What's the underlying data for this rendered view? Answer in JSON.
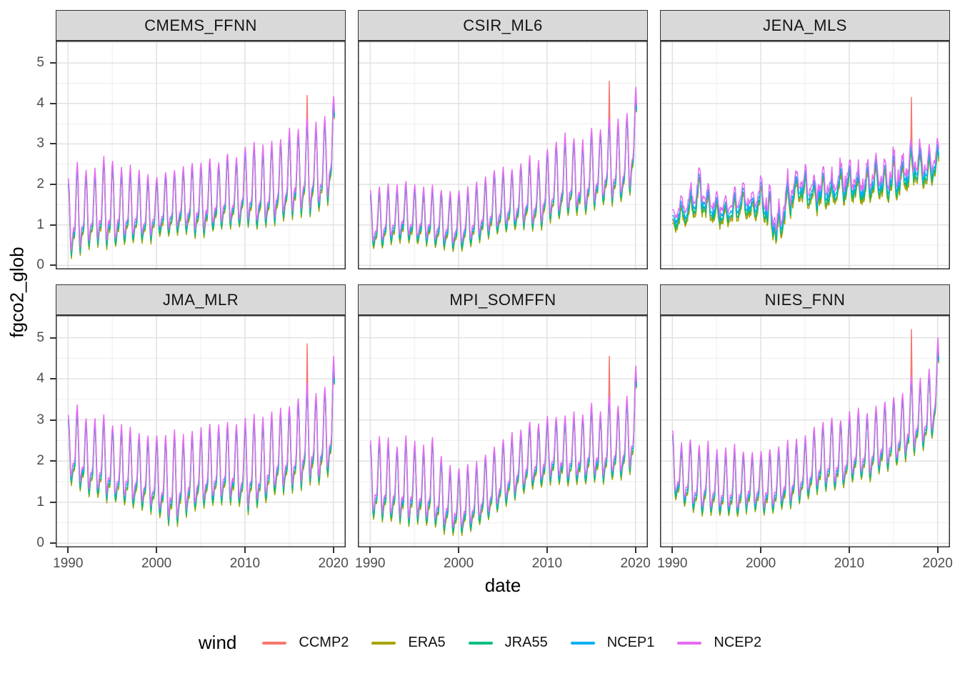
{
  "figure": {
    "y_axis_title": "fgco2_glob",
    "x_axis_title": "date",
    "legend_title": "wind"
  },
  "chart_data": {
    "type": "line",
    "title": "",
    "xlabel": "date",
    "ylabel": "fgco2_glob",
    "legend_title": "wind",
    "legend_position": "bottom",
    "grid": "on",
    "facet_layout": "2 rows x 3 cols",
    "x_domain": [
      1988.6,
      2021.4
    ],
    "y_domain": [
      -0.1,
      5.55
    ],
    "x_ticks": [
      1990,
      2000,
      2010,
      2020
    ],
    "x_minor_ticks": [
      1995,
      2005,
      2015
    ],
    "y_ticks": [
      0,
      1,
      2,
      3,
      4,
      5
    ],
    "y_minor_ticks": [
      0.5,
      1.5,
      2.5,
      3.5,
      4.5,
      5.5
    ],
    "sampling": "monthly values, Jan 1990 - Feb 2020; seasonal cycle peaks near January, trough in boreal summer",
    "envelope_note": "peaks/troughs are per-year seasonal maxima/minima (units of fgco2_glob) read from the plot",
    "years_start": 1990,
    "style": {
      "strip_fill": "#D9D9D9",
      "panel_border": "#333333",
      "grid_major": "#E2E2E2",
      "grid_minor": "#EFEFEF",
      "tick_label_color": "#4d4d4d"
    },
    "series": [
      {
        "name": "CCMP2",
        "color": "#F8766D",
        "amp": 1.05,
        "offset": -0.05
      },
      {
        "name": "ERA5",
        "color": "#A3A500",
        "amp": 1.07,
        "offset": -0.08
      },
      {
        "name": "JRA55",
        "color": "#00BF7D",
        "amp": 1.05,
        "offset": -0.03
      },
      {
        "name": "NCEP1",
        "color": "#00B0F6",
        "amp": 1.0,
        "offset": 0.02
      },
      {
        "name": "NCEP2",
        "color": "#E76BF3",
        "amp": 1.03,
        "offset": 0.1
      }
    ],
    "facets": [
      {
        "title": "CMEMS_FFNN",
        "season_weight": 0.93,
        "offset_spread": 1.0,
        "peaks": [
          2.1,
          2.55,
          2.35,
          2.3,
          2.65,
          2.55,
          2.35,
          2.4,
          2.3,
          2.2,
          2.1,
          2.25,
          2.3,
          2.35,
          2.5,
          2.5,
          2.6,
          2.5,
          2.75,
          2.6,
          2.9,
          3.0,
          2.9,
          3.0,
          3.1,
          3.3,
          3.35,
          3.65,
          3.5,
          3.6,
          4.15
        ],
        "troughs": [
          0.25,
          0.3,
          0.45,
          0.5,
          0.55,
          0.45,
          0.6,
          0.55,
          0.65,
          0.55,
          0.8,
          0.75,
          0.8,
          0.85,
          0.8,
          0.75,
          0.85,
          0.9,
          1.0,
          0.95,
          1.1,
          0.95,
          0.95,
          1.1,
          1.1,
          1.2,
          1.3,
          1.3,
          1.35,
          1.5,
          1.8
        ],
        "ccmp2_spike": {
          "t": 2017.0,
          "value": 4.2
        }
      },
      {
        "title": "CSIR_ML6",
        "season_weight": 0.93,
        "offset_spread": 1.0,
        "peaks": [
          1.75,
          1.85,
          1.95,
          1.9,
          2.0,
          1.95,
          1.85,
          1.9,
          1.8,
          1.75,
          1.8,
          1.85,
          2.0,
          2.1,
          2.3,
          2.35,
          2.3,
          2.45,
          2.6,
          2.5,
          2.8,
          3.0,
          3.2,
          3.1,
          3.0,
          3.35,
          3.3,
          3.6,
          3.5,
          3.7,
          4.35
        ],
        "troughs": [
          0.5,
          0.45,
          0.55,
          0.6,
          0.65,
          0.55,
          0.6,
          0.55,
          0.5,
          0.45,
          0.4,
          0.45,
          0.6,
          0.7,
          0.8,
          0.85,
          0.9,
          0.95,
          1.0,
          0.9,
          1.1,
          1.15,
          1.2,
          1.3,
          1.25,
          1.45,
          1.5,
          1.6,
          1.55,
          1.7,
          2.1
        ],
        "ccmp2_spike": {
          "t": 2017.0,
          "value": 4.55
        }
      },
      {
        "title": "JENA_MLS",
        "season_weight": 0.62,
        "offset_spread": 1.8,
        "peaks": [
          1.3,
          1.75,
          1.9,
          2.75,
          2.0,
          1.75,
          1.6,
          1.8,
          2.1,
          1.85,
          2.15,
          2.0,
          1.5,
          2.35,
          2.4,
          2.45,
          2.2,
          2.5,
          2.3,
          2.6,
          2.7,
          2.5,
          2.6,
          2.75,
          2.6,
          2.9,
          2.8,
          3.15,
          3.1,
          2.95,
          3.05
        ],
        "troughs": [
          0.85,
          0.95,
          1.1,
          1.2,
          1.0,
          1.05,
          0.95,
          1.1,
          1.3,
          0.9,
          1.35,
          0.75,
          0.35,
          1.15,
          1.4,
          1.5,
          1.3,
          1.45,
          1.35,
          1.5,
          1.6,
          1.4,
          1.55,
          1.7,
          1.5,
          1.7,
          1.6,
          1.9,
          2.0,
          1.85,
          2.3
        ],
        "ccmp2_spike": {
          "t": 2017.0,
          "value": 4.15
        }
      },
      {
        "title": "JMA_MLR",
        "season_weight": 0.93,
        "offset_spread": 1.0,
        "peaks": [
          3.05,
          3.3,
          3.0,
          2.95,
          3.1,
          2.85,
          2.8,
          2.75,
          2.65,
          2.6,
          2.55,
          2.6,
          2.65,
          2.55,
          2.7,
          2.75,
          2.85,
          2.8,
          2.9,
          2.85,
          3.0,
          3.1,
          3.05,
          3.15,
          3.2,
          3.3,
          3.5,
          3.85,
          3.6,
          3.75,
          4.45
        ],
        "troughs": [
          1.55,
          1.4,
          1.25,
          1.2,
          1.1,
          1.05,
          1.0,
          0.95,
          0.9,
          0.85,
          0.75,
          0.6,
          0.45,
          0.7,
          0.8,
          0.9,
          0.95,
          1.0,
          1.05,
          1.0,
          0.8,
          0.85,
          0.9,
          1.2,
          1.25,
          1.3,
          1.35,
          1.45,
          1.5,
          1.55,
          1.8
        ],
        "ccmp2_spike": {
          "t": 2017.0,
          "value": 4.85
        }
      },
      {
        "title": "MPI_SOMFFN",
        "season_weight": 0.93,
        "offset_spread": 1.0,
        "peaks": [
          2.45,
          2.55,
          2.5,
          2.3,
          2.55,
          2.45,
          2.3,
          2.55,
          2.1,
          1.8,
          1.75,
          1.85,
          1.9,
          2.1,
          2.3,
          2.5,
          2.6,
          2.7,
          2.9,
          2.8,
          3.0,
          3.05,
          3.0,
          3.1,
          3.05,
          3.35,
          3.1,
          3.5,
          3.3,
          3.45,
          4.3
        ],
        "troughs": [
          0.6,
          0.65,
          0.55,
          0.6,
          0.5,
          0.55,
          0.5,
          0.45,
          0.35,
          0.3,
          0.25,
          0.3,
          0.45,
          0.55,
          0.75,
          0.9,
          1.1,
          1.2,
          1.4,
          1.35,
          1.5,
          1.55,
          1.45,
          1.5,
          1.45,
          1.6,
          1.5,
          1.6,
          1.55,
          1.6,
          1.9
        ],
        "ccmp2_spike": {
          "t": 2017.0,
          "value": 4.55
        }
      },
      {
        "title": "NIES_FNN",
        "season_weight": 0.93,
        "offset_spread": 1.0,
        "peaks": [
          2.7,
          2.35,
          2.5,
          2.3,
          2.4,
          2.2,
          2.25,
          2.3,
          2.2,
          2.15,
          2.2,
          2.25,
          2.3,
          2.4,
          2.5,
          2.55,
          2.8,
          2.9,
          3.0,
          2.95,
          3.1,
          3.2,
          3.1,
          3.3,
          3.4,
          3.5,
          3.6,
          4.05,
          3.9,
          4.1,
          4.9
        ],
        "troughs": [
          1.15,
          1.0,
          0.85,
          0.75,
          0.8,
          0.7,
          0.75,
          0.65,
          0.8,
          0.85,
          0.8,
          0.75,
          0.85,
          0.9,
          1.0,
          1.1,
          1.2,
          1.3,
          1.4,
          1.35,
          1.5,
          1.6,
          1.55,
          1.7,
          1.8,
          1.9,
          2.0,
          2.2,
          2.3,
          2.4,
          2.9
        ],
        "ccmp2_spike": {
          "t": 2017.0,
          "value": 5.2
        }
      }
    ]
  }
}
